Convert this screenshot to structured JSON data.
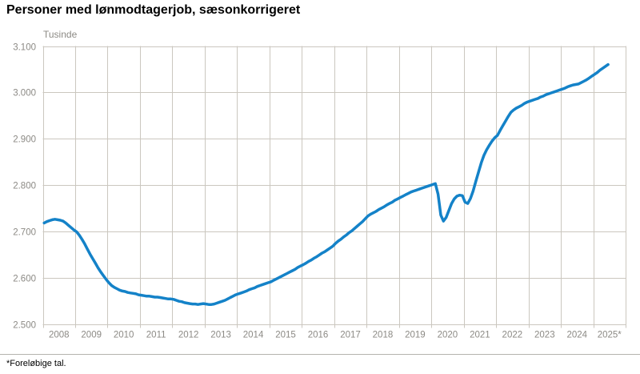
{
  "header": {
    "title": "Personer med lønmodtagerjob, sæsonkorrigeret"
  },
  "footer": {
    "note": "*Foreløbige tal."
  },
  "chart_data": {
    "type": "line",
    "title": "Personer med lønmodtagerjob, sæsonkorrigeret",
    "unit_label": "Tusinde",
    "ylabel": "Tusinde",
    "xlabel": "",
    "ylim": [
      2500,
      3100
    ],
    "y_tick_step": 100,
    "y_tick_labels": [
      "3.100",
      "3.000",
      "2.900",
      "2.800",
      "2.700",
      "2.600",
      "2.500"
    ],
    "x_tick_labels": [
      "2008",
      "2009",
      "2010",
      "2011",
      "2012",
      "2013",
      "2014",
      "2015",
      "2016",
      "2017",
      "2018",
      "2019",
      "2020",
      "2021",
      "2022",
      "2023",
      "2024",
      "2025*"
    ],
    "x_monthly_start": "2008-01",
    "x_monthly_end": "2025-06",
    "grid": true,
    "legend": "none",
    "colors": {
      "line": "#1482c8",
      "grid": "#cbc7bf",
      "axis_text": "#8c8a85",
      "title_text": "#000000"
    },
    "series": [
      {
        "name": "Personer med lønmodtagerjob, sæsonkorrigeret (tusinde)",
        "monthly_values": [
          2718,
          2721,
          2723,
          2725,
          2726,
          2725,
          2724,
          2722,
          2718,
          2713,
          2708,
          2703,
          2699,
          2692,
          2683,
          2673,
          2662,
          2651,
          2641,
          2631,
          2621,
          2612,
          2604,
          2596,
          2589,
          2583,
          2579,
          2576,
          2573,
          2571,
          2570,
          2568,
          2567,
          2566,
          2565,
          2563,
          2562,
          2561,
          2560,
          2560,
          2559,
          2558,
          2558,
          2557,
          2556,
          2555,
          2554,
          2554,
          2553,
          2551,
          2549,
          2548,
          2546,
          2545,
          2544,
          2543,
          2543,
          2542,
          2543,
          2544,
          2543,
          2542,
          2542,
          2543,
          2545,
          2547,
          2549,
          2551,
          2554,
          2557,
          2560,
          2563,
          2565,
          2567,
          2569,
          2571,
          2574,
          2576,
          2578,
          2581,
          2583,
          2585,
          2587,
          2589,
          2591,
          2594,
          2597,
          2600,
          2603,
          2606,
          2609,
          2612,
          2615,
          2618,
          2622,
          2625,
          2628,
          2631,
          2635,
          2638,
          2642,
          2645,
          2649,
          2653,
          2656,
          2660,
          2664,
          2668,
          2674,
          2679,
          2683,
          2688,
          2692,
          2697,
          2701,
          2706,
          2711,
          2716,
          2721,
          2727,
          2733,
          2737,
          2740,
          2743,
          2747,
          2750,
          2753,
          2757,
          2760,
          2763,
          2767,
          2770,
          2773,
          2776,
          2779,
          2782,
          2785,
          2787,
          2789,
          2791,
          2793,
          2795,
          2797,
          2799,
          2801,
          2803,
          2780,
          2735,
          2722,
          2730,
          2745,
          2760,
          2770,
          2776,
          2778,
          2777,
          2763,
          2760,
          2771,
          2787,
          2808,
          2828,
          2848,
          2864,
          2876,
          2886,
          2895,
          2902,
          2907,
          2918,
          2928,
          2938,
          2948,
          2957,
          2962,
          2966,
          2969,
          2972,
          2976,
          2979,
          2981,
          2983,
          2985,
          2987,
          2990,
          2992,
          2995,
          2997,
          2999,
          3001,
          3003,
          3005,
          3007,
          3009,
          3012,
          3014,
          3016,
          3017,
          3018,
          3021,
          3024,
          3027,
          3031,
          3035,
          3039,
          3043,
          3048,
          3052,
          3056,
          3060
        ]
      }
    ]
  }
}
